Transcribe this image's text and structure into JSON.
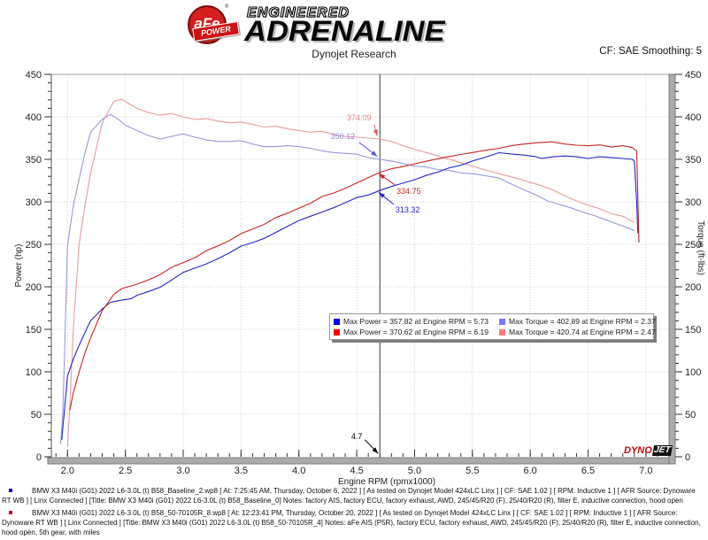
{
  "header": {
    "logo_afe": "aFe",
    "logo_reg": "®",
    "logo_power": "POWER",
    "brand_line1": "ENGINEERED",
    "brand_line2": "ADRENALINE",
    "subtitle": "Dynojet Research",
    "cf_label": "CF: SAE Smoothing: 5"
  },
  "chart_data": {
    "type": "line",
    "xlabel": "Engine RPM (rpmx1000)",
    "ylabel_left": "Power (hp)",
    "ylabel_right": "Torque (ft-lbs)",
    "xlim": [
      1.86,
      7.2
    ],
    "ylim": [
      0,
      450
    ],
    "x_major_ticks": [
      2.0,
      2.5,
      3.0,
      3.5,
      4.0,
      4.5,
      5.0,
      5.5,
      6.0,
      6.5,
      7.0
    ],
    "x_tick_labels": [
      "2.0",
      "2.5",
      "3.0",
      "3.5",
      "4.0",
      "4.5",
      "5.0",
      "5.5",
      "6.0",
      "6.5",
      "7.0"
    ],
    "x_minor_step": 0.1,
    "y_major_step": 50,
    "y_minor_step": 10,
    "grid": true,
    "cursor_rpm": 4.7,
    "series": [
      {
        "name": "torque-baseline",
        "unit": "ft-lbs",
        "color": "#9898e0",
        "points": [
          [
            1.94,
            15
          ],
          [
            1.96,
            54
          ],
          [
            2.0,
            249
          ],
          [
            2.05,
            295
          ],
          [
            2.1,
            327
          ],
          [
            2.15,
            357
          ],
          [
            2.2,
            382
          ],
          [
            2.3,
            397
          ],
          [
            2.37,
            402.9
          ],
          [
            2.45,
            396
          ],
          [
            2.5,
            390
          ],
          [
            2.6,
            384
          ],
          [
            2.7,
            378
          ],
          [
            2.8,
            374
          ],
          [
            2.9,
            377
          ],
          [
            3.0,
            380
          ],
          [
            3.1,
            376
          ],
          [
            3.2,
            373
          ],
          [
            3.3,
            371
          ],
          [
            3.4,
            371
          ],
          [
            3.5,
            372
          ],
          [
            3.6,
            368
          ],
          [
            3.7,
            365
          ],
          [
            3.8,
            365
          ],
          [
            3.9,
            366
          ],
          [
            4.0,
            365
          ],
          [
            4.1,
            363
          ],
          [
            4.2,
            360
          ],
          [
            4.3,
            358
          ],
          [
            4.4,
            357
          ],
          [
            4.5,
            356
          ],
          [
            4.6,
            352
          ],
          [
            4.7,
            350.1
          ],
          [
            4.8,
            348
          ],
          [
            4.9,
            345
          ],
          [
            5.0,
            342
          ],
          [
            5.1,
            341
          ],
          [
            5.2,
            338
          ],
          [
            5.3,
            337
          ],
          [
            5.4,
            334
          ],
          [
            5.5,
            333
          ],
          [
            5.6,
            331
          ],
          [
            5.73,
            328
          ],
          [
            5.85,
            320
          ],
          [
            5.95,
            314
          ],
          [
            6.05,
            308
          ],
          [
            6.15,
            301
          ],
          [
            6.25,
            297
          ],
          [
            6.35,
            293
          ],
          [
            6.45,
            288
          ],
          [
            6.55,
            284
          ],
          [
            6.65,
            279
          ],
          [
            6.75,
            274
          ],
          [
            6.85,
            269
          ],
          [
            6.9,
            266
          ]
        ]
      },
      {
        "name": "torque-afe",
        "unit": "ft-lbs",
        "color": "#e89c9c",
        "points": [
          [
            2.0,
            12
          ],
          [
            2.02,
            60
          ],
          [
            2.05,
            150
          ],
          [
            2.1,
            250
          ],
          [
            2.15,
            295
          ],
          [
            2.2,
            334
          ],
          [
            2.3,
            393
          ],
          [
            2.4,
            418
          ],
          [
            2.47,
            420.7
          ],
          [
            2.55,
            414
          ],
          [
            2.6,
            410
          ],
          [
            2.7,
            405
          ],
          [
            2.8,
            402
          ],
          [
            2.9,
            404
          ],
          [
            3.0,
            400
          ],
          [
            3.1,
            397
          ],
          [
            3.2,
            398
          ],
          [
            3.3,
            395
          ],
          [
            3.4,
            393
          ],
          [
            3.5,
            394
          ],
          [
            3.6,
            391
          ],
          [
            3.7,
            388
          ],
          [
            3.8,
            389
          ],
          [
            3.9,
            386
          ],
          [
            4.0,
            384
          ],
          [
            4.1,
            382
          ],
          [
            4.2,
            383
          ],
          [
            4.3,
            379
          ],
          [
            4.4,
            377
          ],
          [
            4.5,
            376
          ],
          [
            4.6,
            375
          ],
          [
            4.7,
            374.1
          ],
          [
            4.8,
            371
          ],
          [
            4.9,
            366
          ],
          [
            5.0,
            362
          ],
          [
            5.1,
            358
          ],
          [
            5.2,
            354
          ],
          [
            5.3,
            350
          ],
          [
            5.4,
            346
          ],
          [
            5.5,
            342
          ],
          [
            5.6,
            338
          ],
          [
            5.73,
            333
          ],
          [
            5.85,
            329
          ],
          [
            5.95,
            325
          ],
          [
            6.05,
            321
          ],
          [
            6.19,
            314.4
          ],
          [
            6.3,
            307
          ],
          [
            6.4,
            301
          ],
          [
            6.5,
            296
          ],
          [
            6.6,
            292
          ],
          [
            6.7,
            286
          ],
          [
            6.8,
            283
          ],
          [
            6.9,
            276
          ]
        ]
      },
      {
        "name": "power-baseline",
        "unit": "hp",
        "color": "#2424c8",
        "points": [
          [
            1.95,
            20
          ],
          [
            2.0,
            95
          ],
          [
            2.05,
            115
          ],
          [
            2.1,
            131
          ],
          [
            2.15,
            146
          ],
          [
            2.2,
            160
          ],
          [
            2.3,
            174
          ],
          [
            2.37,
            181.8
          ],
          [
            2.45,
            184
          ],
          [
            2.55,
            186
          ],
          [
            2.6,
            190
          ],
          [
            2.7,
            194.5
          ],
          [
            2.8,
            199.5
          ],
          [
            2.9,
            208
          ],
          [
            3.0,
            217
          ],
          [
            3.1,
            222
          ],
          [
            3.2,
            227
          ],
          [
            3.3,
            233
          ],
          [
            3.4,
            240
          ],
          [
            3.5,
            247.9
          ],
          [
            3.6,
            252
          ],
          [
            3.7,
            257
          ],
          [
            3.8,
            264
          ],
          [
            3.9,
            271
          ],
          [
            4.0,
            278
          ],
          [
            4.1,
            283
          ],
          [
            4.2,
            288
          ],
          [
            4.3,
            293
          ],
          [
            4.4,
            299
          ],
          [
            4.5,
            305
          ],
          [
            4.6,
            308
          ],
          [
            4.7,
            313.3
          ],
          [
            4.8,
            318
          ],
          [
            4.9,
            322
          ],
          [
            5.0,
            326
          ],
          [
            5.1,
            331
          ],
          [
            5.2,
            335
          ],
          [
            5.3,
            340
          ],
          [
            5.4,
            343
          ],
          [
            5.5,
            348
          ],
          [
            5.6,
            352
          ],
          [
            5.73,
            357.8
          ],
          [
            5.85,
            356
          ],
          [
            5.95,
            355
          ],
          [
            6.05,
            353
          ],
          [
            6.1,
            351
          ],
          [
            6.2,
            353
          ],
          [
            6.3,
            354
          ],
          [
            6.4,
            353
          ],
          [
            6.5,
            351
          ],
          [
            6.6,
            353
          ],
          [
            6.7,
            352
          ],
          [
            6.8,
            351
          ],
          [
            6.88,
            350
          ],
          [
            6.9,
            348
          ],
          [
            6.92,
            300
          ],
          [
            6.93,
            263
          ]
        ]
      },
      {
        "name": "power-afe",
        "unit": "hp",
        "color": "#c82424",
        "points": [
          [
            2.02,
            55
          ],
          [
            2.05,
            75
          ],
          [
            2.1,
            100
          ],
          [
            2.15,
            122
          ],
          [
            2.2,
            140
          ],
          [
            2.3,
            172
          ],
          [
            2.4,
            191
          ],
          [
            2.47,
            197.9
          ],
          [
            2.55,
            201
          ],
          [
            2.6,
            203
          ],
          [
            2.7,
            208.2
          ],
          [
            2.8,
            214.3
          ],
          [
            2.9,
            223
          ],
          [
            3.0,
            228.5
          ],
          [
            3.1,
            234.3
          ],
          [
            3.2,
            242.5
          ],
          [
            3.3,
            248.2
          ],
          [
            3.4,
            254.4
          ],
          [
            3.5,
            262.6
          ],
          [
            3.6,
            268
          ],
          [
            3.7,
            273.4
          ],
          [
            3.8,
            281.5
          ],
          [
            3.9,
            286.7
          ],
          [
            4.0,
            292.4
          ],
          [
            4.1,
            298.2
          ],
          [
            4.2,
            306.2
          ],
          [
            4.3,
            310.3
          ],
          [
            4.4,
            315.9
          ],
          [
            4.5,
            322.2
          ],
          [
            4.6,
            328.5
          ],
          [
            4.7,
            334.8
          ],
          [
            4.8,
            339
          ],
          [
            4.9,
            341.5
          ],
          [
            5.0,
            344.7
          ],
          [
            5.1,
            347.7
          ],
          [
            5.2,
            350.6
          ],
          [
            5.3,
            353.2
          ],
          [
            5.4,
            355.7
          ],
          [
            5.5,
            358
          ],
          [
            5.6,
            360.3
          ],
          [
            5.73,
            363
          ],
          [
            5.85,
            366.4
          ],
          [
            5.95,
            368
          ],
          [
            6.05,
            369.5
          ],
          [
            6.19,
            370.6
          ],
          [
            6.3,
            368
          ],
          [
            6.4,
            366.7
          ],
          [
            6.5,
            366
          ],
          [
            6.6,
            367
          ],
          [
            6.7,
            364.5
          ],
          [
            6.8,
            366
          ],
          [
            6.88,
            364
          ],
          [
            6.92,
            360
          ],
          [
            6.94,
            252
          ]
        ]
      }
    ],
    "annotations": [
      {
        "text": "374.09",
        "text_color": "#e08888",
        "arrow_color": "#e05555",
        "label": {
          "rpm": 4.52,
          "val": 399
        },
        "from": {
          "rpm": 4.65,
          "val": 391
        },
        "to": {
          "rpm": 4.678,
          "val": 377.5
        }
      },
      {
        "text": "350.12",
        "text_color": "#8888dd",
        "arrow_color": "#5555e0",
        "label": {
          "rpm": 4.38,
          "val": 377
        },
        "from": {
          "rpm": 4.52,
          "val": 370
        },
        "to": {
          "rpm": 4.678,
          "val": 353.5
        }
      },
      {
        "text": "334.75",
        "text_color": "#cc2222",
        "arrow_color": "#cc2222",
        "label": {
          "rpm": 4.95,
          "val": 313
        },
        "from": {
          "rpm": 4.83,
          "val": 320
        },
        "to": {
          "rpm": 4.69,
          "val": 333
        }
      },
      {
        "text": "313.32",
        "text_color": "#2222cc",
        "arrow_color": "#2222cc",
        "label": {
          "rpm": 4.94,
          "val": 291
        },
        "from": {
          "rpm": 4.82,
          "val": 297
        },
        "to": {
          "rpm": 4.69,
          "val": 311
        }
      },
      {
        "text": "4.7",
        "text_color": "#000000",
        "arrow_color": "#000000",
        "label": {
          "rpm": 4.5,
          "val": 24
        },
        "from": {
          "rpm": 4.57,
          "val": 20
        },
        "to": {
          "rpm": 4.685,
          "val": 4
        }
      }
    ],
    "legend": {
      "entries": [
        {
          "swatch": "#0000ee",
          "label": "Max Power = 357.82 at Engine RPM = 5.73"
        },
        {
          "swatch": "#7a7aff",
          "label": "Max Torque = 402.89 at Engine RPM = 2.37"
        },
        {
          "swatch": "#ee0000",
          "label": "Max Power = 370.62 at Engine RPM = 6.19"
        },
        {
          "swatch": "#ff7a7a",
          "label": "Max Torque = 420.74 at Engine RPM = 2.47"
        }
      ]
    },
    "watermark": {
      "part1": "DYNO",
      "part2": "JET"
    }
  },
  "footer": {
    "runs": [
      {
        "bullet_color": "#0000cc",
        "text": "BMW X3 M40i (G01) 2022 L6-3.0L (t) B58_Baseline_2.wp8 [ At: 7:25:45 AM, Thursday, October 6, 2022 ] [ As tested on Dynojet Model 424xLC Linx ] [ CF: SAE 1.02 ] [ RPM: Inductive 1 ] [ AFR Source: Dynoware RT WB ] [ Linx Connected ] [Title: BMW X3 M40i (G01) 2022 L6-3.0L (t) B58_Baseline_0]  Notes: factory AIS, factory ECU, factory exhaust, AWD, 245/45/R20 (F), 25/40/R20 (R), filter E, inductive connection, hood open"
      },
      {
        "bullet_color": "#cc0000",
        "text": "BMW X3 M40i (G01) 2022 L6-3.0L (t) B58_50-70105R_8.wp8 [ At: 12:23:41 PM, Thursday, October 20, 2022 ] [ As tested on Dynojet Model 424xLC Linx ] [ CF: SAE 1.02 ] [ RPM: Inductive 1 ] [ AFR Source: Dynoware RT WB ] [ Linx Connected ] [Title: BMW X3 M40i (G01) 2022 L6-3.0L (t) B58_50-70105R_4]  Notes: aFe AIS (P5R), factory ECU, factory exhaust, AWD, 245/45/R20 (F), 25/40/R20 (R), filter E, inductive connection, hood open, 5th gear, with miles"
      }
    ]
  }
}
